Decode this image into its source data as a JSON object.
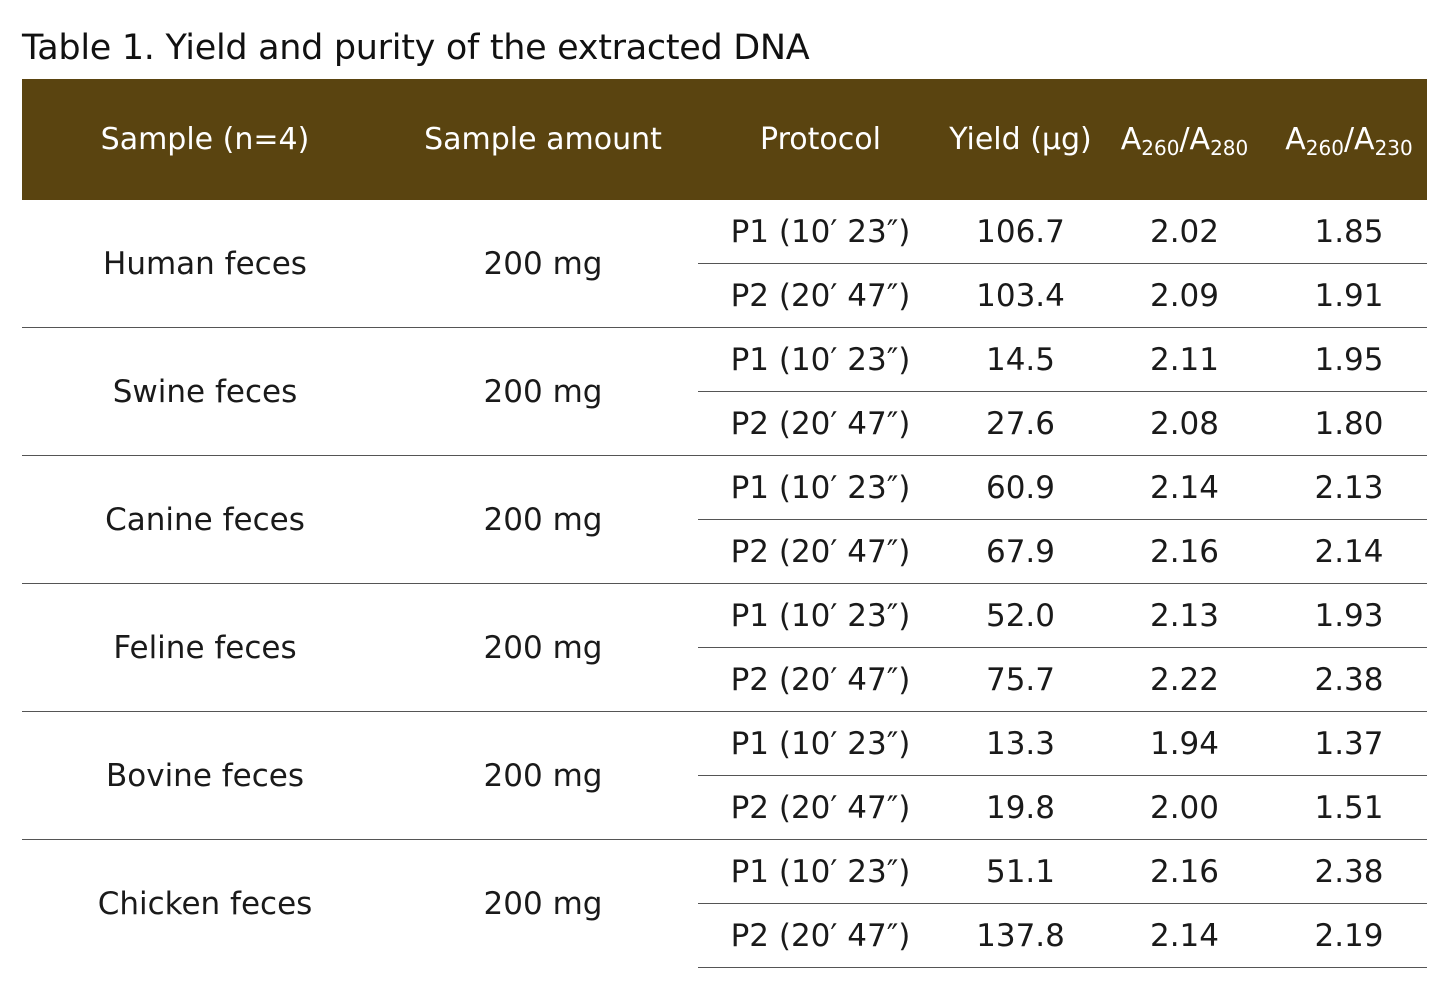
{
  "caption": "Table 1. Yield and purity of the extracted DNA",
  "header": {
    "sample": "Sample (n=4)",
    "amount": "Sample amount",
    "protocol": "Protocol",
    "yield": "Yield (µg)",
    "r280": {
      "a1": "A",
      "s1": "260",
      "slash": "/A",
      "s2": "280"
    },
    "r230": {
      "a1": "A",
      "s1": "260",
      "slash": "/A",
      "s2": "230"
    }
  },
  "colors": {
    "header_bg": "#5a4410",
    "header_text": "#ffffff",
    "rule": "#555555"
  },
  "groups": [
    {
      "sample": "Human feces",
      "amount": "200 mg",
      "rows": [
        {
          "protocol": "P1 (10′ 23″)",
          "yield": "106.7",
          "r280": "2.02",
          "r230": "1.85"
        },
        {
          "protocol": "P2 (20′ 47″)",
          "yield": "103.4",
          "r280": "2.09",
          "r230": "1.91"
        }
      ]
    },
    {
      "sample": "Swine feces",
      "amount": "200 mg",
      "rows": [
        {
          "protocol": "P1 (10′ 23″)",
          "yield": "14.5",
          "r280": "2.11",
          "r230": "1.95"
        },
        {
          "protocol": "P2 (20′ 47″)",
          "yield": "27.6",
          "r280": "2.08",
          "r230": "1.80"
        }
      ]
    },
    {
      "sample": "Canine feces",
      "amount": "200 mg",
      "rows": [
        {
          "protocol": "P1 (10′ 23″)",
          "yield": "60.9",
          "r280": "2.14",
          "r230": "2.13"
        },
        {
          "protocol": "P2 (20′ 47″)",
          "yield": "67.9",
          "r280": "2.16",
          "r230": "2.14"
        }
      ]
    },
    {
      "sample": "Feline feces",
      "amount": "200 mg",
      "rows": [
        {
          "protocol": "P1 (10′ 23″)",
          "yield": "52.0",
          "r280": "2.13",
          "r230": "1.93"
        },
        {
          "protocol": "P2 (20′ 47″)",
          "yield": "75.7",
          "r280": "2.22",
          "r230": "2.38"
        }
      ]
    },
    {
      "sample": "Bovine feces",
      "amount": "200 mg",
      "rows": [
        {
          "protocol": "P1 (10′ 23″)",
          "yield": "13.3",
          "r280": "1.94",
          "r230": "1.37"
        },
        {
          "protocol": "P2 (20′ 47″)",
          "yield": "19.8",
          "r280": "2.00",
          "r230": "1.51"
        }
      ]
    },
    {
      "sample": "Chicken feces",
      "amount": "200 mg",
      "rows": [
        {
          "protocol": "P1 (10′ 23″)",
          "yield": "51.1",
          "r280": "2.16",
          "r230": "2.38"
        },
        {
          "protocol": "P2 (20′ 47″)",
          "yield": "137.8",
          "r280": "2.14",
          "r230": "2.19"
        }
      ]
    }
  ]
}
